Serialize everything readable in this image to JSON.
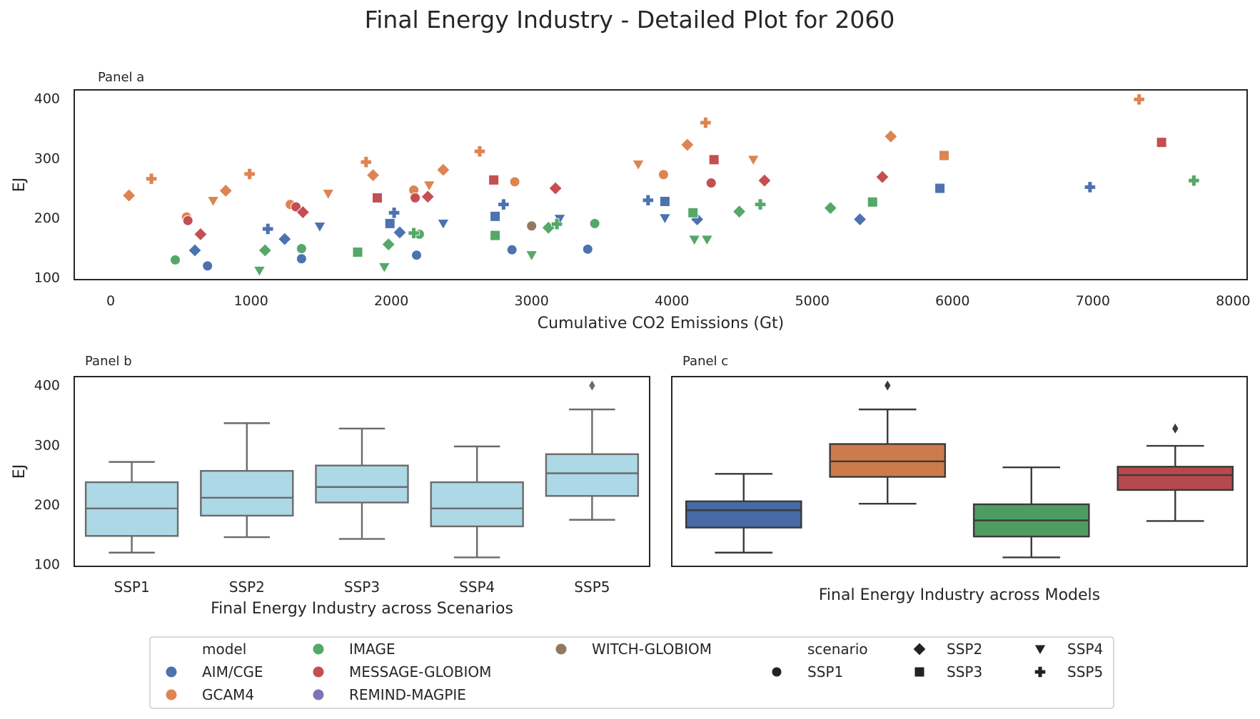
{
  "figure_title": "Final Energy Industry - Detailed Plot for 2060",
  "colors": {
    "AIM/CGE": "#4c72b0",
    "GCAM4": "#dd8452",
    "IMAGE": "#55a868",
    "MESSAGE-GLOBIOM": "#c44e52",
    "REMIND-MAGPIE": "#8172b3",
    "WITCH-GLOBIOM": "#937860",
    "box_scenario": "#add8e6",
    "axis": "#262626"
  },
  "chart_data": [
    {
      "type": "scatter",
      "panel_label": "Panel a",
      "xlabel": "Cumulative CO2 Emissions (Gt)",
      "ylabel": "EJ",
      "xlim": [
        -260,
        8100
      ],
      "ylim": [
        96,
        414
      ],
      "xticks": [
        0,
        1000,
        2000,
        3000,
        4000,
        5000,
        6000,
        7000,
        8000
      ],
      "yticks": [
        100,
        200,
        300,
        400
      ],
      "grid": false,
      "points": [
        {
          "x": 460,
          "y": 129,
          "model": "IMAGE",
          "scenario": "SSP1"
        },
        {
          "x": 690,
          "y": 119,
          "model": "AIM/CGE",
          "scenario": "SSP1"
        },
        {
          "x": 1360,
          "y": 148,
          "model": "IMAGE",
          "scenario": "SSP1"
        },
        {
          "x": 1360,
          "y": 131,
          "model": "AIM/CGE",
          "scenario": "SSP1"
        },
        {
          "x": 540,
          "y": 201,
          "model": "GCAM4",
          "scenario": "SSP1"
        },
        {
          "x": 550,
          "y": 195,
          "model": "MESSAGE-GLOBIOM",
          "scenario": "SSP1"
        },
        {
          "x": 1280,
          "y": 222,
          "model": "GCAM4",
          "scenario": "SSP1"
        },
        {
          "x": 1320,
          "y": 218,
          "model": "MESSAGE-GLOBIOM",
          "scenario": "SSP1"
        },
        {
          "x": 2160,
          "y": 246,
          "model": "GCAM4",
          "scenario": "SSP1"
        },
        {
          "x": 2170,
          "y": 233,
          "model": "MESSAGE-GLOBIOM",
          "scenario": "SSP1"
        },
        {
          "x": 2180,
          "y": 137,
          "model": "AIM/CGE",
          "scenario": "SSP1"
        },
        {
          "x": 2200,
          "y": 172,
          "model": "IMAGE",
          "scenario": "SSP1"
        },
        {
          "x": 2860,
          "y": 146,
          "model": "AIM/CGE",
          "scenario": "SSP1"
        },
        {
          "x": 2880,
          "y": 260,
          "model": "GCAM4",
          "scenario": "SSP1"
        },
        {
          "x": 3000,
          "y": 185,
          "model": "IMAGE",
          "scenario": "SSP1"
        },
        {
          "x": 3000,
          "y": 186,
          "model": "WITCH-GLOBIOM",
          "scenario": "SSP1"
        },
        {
          "x": 3450,
          "y": 190,
          "model": "IMAGE",
          "scenario": "SSP1"
        },
        {
          "x": 3400,
          "y": 147,
          "model": "AIM/CGE",
          "scenario": "SSP1"
        },
        {
          "x": 3940,
          "y": 272,
          "model": "GCAM4",
          "scenario": "SSP1"
        },
        {
          "x": 4280,
          "y": 258,
          "model": "MESSAGE-GLOBIOM",
          "scenario": "SSP1"
        },
        {
          "x": 130,
          "y": 237,
          "model": "GCAM4",
          "scenario": "SSP2"
        },
        {
          "x": 600,
          "y": 145,
          "model": "AIM/CGE",
          "scenario": "SSP2"
        },
        {
          "x": 640,
          "y": 172,
          "model": "MESSAGE-GLOBIOM",
          "scenario": "SSP2"
        },
        {
          "x": 820,
          "y": 245,
          "model": "GCAM4",
          "scenario": "SSP2"
        },
        {
          "x": 1100,
          "y": 145,
          "model": "IMAGE",
          "scenario": "SSP2"
        },
        {
          "x": 1240,
          "y": 164,
          "model": "AIM/CGE",
          "scenario": "SSP2"
        },
        {
          "x": 1370,
          "y": 209,
          "model": "MESSAGE-GLOBIOM",
          "scenario": "SSP2"
        },
        {
          "x": 1870,
          "y": 271,
          "model": "GCAM4",
          "scenario": "SSP2"
        },
        {
          "x": 1980,
          "y": 155,
          "model": "IMAGE",
          "scenario": "SSP2"
        },
        {
          "x": 2060,
          "y": 175,
          "model": "AIM/CGE",
          "scenario": "SSP2"
        },
        {
          "x": 2260,
          "y": 235,
          "model": "MESSAGE-GLOBIOM",
          "scenario": "SSP2"
        },
        {
          "x": 2370,
          "y": 280,
          "model": "GCAM4",
          "scenario": "SSP2"
        },
        {
          "x": 3120,
          "y": 183,
          "model": "IMAGE",
          "scenario": "SSP2"
        },
        {
          "x": 3170,
          "y": 249,
          "model": "MESSAGE-GLOBIOM",
          "scenario": "SSP2"
        },
        {
          "x": 4110,
          "y": 322,
          "model": "GCAM4",
          "scenario": "SSP2"
        },
        {
          "x": 4180,
          "y": 197,
          "model": "AIM/CGE",
          "scenario": "SSP2"
        },
        {
          "x": 4480,
          "y": 210,
          "model": "IMAGE",
          "scenario": "SSP2"
        },
        {
          "x": 4660,
          "y": 262,
          "model": "MESSAGE-GLOBIOM",
          "scenario": "SSP2"
        },
        {
          "x": 5130,
          "y": 216,
          "model": "IMAGE",
          "scenario": "SSP2"
        },
        {
          "x": 5340,
          "y": 197,
          "model": "AIM/CGE",
          "scenario": "SSP2"
        },
        {
          "x": 5500,
          "y": 268,
          "model": "MESSAGE-GLOBIOM",
          "scenario": "SSP2"
        },
        {
          "x": 5560,
          "y": 336,
          "model": "GCAM4",
          "scenario": "SSP2"
        },
        {
          "x": 1760,
          "y": 142,
          "model": "IMAGE",
          "scenario": "SSP3"
        },
        {
          "x": 1900,
          "y": 233,
          "model": "MESSAGE-GLOBIOM",
          "scenario": "SSP3"
        },
        {
          "x": 1990,
          "y": 190,
          "model": "AIM/CGE",
          "scenario": "SSP3"
        },
        {
          "x": 2730,
          "y": 263,
          "model": "MESSAGE-GLOBIOM",
          "scenario": "SSP3"
        },
        {
          "x": 2740,
          "y": 202,
          "model": "AIM/CGE",
          "scenario": "SSP3"
        },
        {
          "x": 2740,
          "y": 170,
          "model": "IMAGE",
          "scenario": "SSP3"
        },
        {
          "x": 3950,
          "y": 227,
          "model": "AIM/CGE",
          "scenario": "SSP3"
        },
        {
          "x": 4150,
          "y": 208,
          "model": "IMAGE",
          "scenario": "SSP3"
        },
        {
          "x": 4300,
          "y": 297,
          "model": "MESSAGE-GLOBIOM",
          "scenario": "SSP3"
        },
        {
          "x": 5430,
          "y": 226,
          "model": "IMAGE",
          "scenario": "SSP3"
        },
        {
          "x": 5910,
          "y": 249,
          "model": "AIM/CGE",
          "scenario": "SSP3"
        },
        {
          "x": 5940,
          "y": 304,
          "model": "GCAM4",
          "scenario": "SSP3"
        },
        {
          "x": 7490,
          "y": 326,
          "model": "MESSAGE-GLOBIOM",
          "scenario": "SSP3"
        },
        {
          "x": 1060,
          "y": 111,
          "model": "IMAGE",
          "scenario": "SSP4"
        },
        {
          "x": 730,
          "y": 228,
          "model": "GCAM4",
          "scenario": "SSP4"
        },
        {
          "x": 1490,
          "y": 185,
          "model": "AIM/CGE",
          "scenario": "SSP4"
        },
        {
          "x": 1550,
          "y": 240,
          "model": "GCAM4",
          "scenario": "SSP4"
        },
        {
          "x": 1950,
          "y": 117,
          "model": "IMAGE",
          "scenario": "SSP4"
        },
        {
          "x": 2270,
          "y": 254,
          "model": "GCAM4",
          "scenario": "SSP4"
        },
        {
          "x": 2370,
          "y": 190,
          "model": "AIM/CGE",
          "scenario": "SSP4"
        },
        {
          "x": 3000,
          "y": 137,
          "model": "IMAGE",
          "scenario": "SSP4"
        },
        {
          "x": 3200,
          "y": 198,
          "model": "AIM/CGE",
          "scenario": "SSP4"
        },
        {
          "x": 3760,
          "y": 289,
          "model": "GCAM4",
          "scenario": "SSP4"
        },
        {
          "x": 3950,
          "y": 199,
          "model": "AIM/CGE",
          "scenario": "SSP4"
        },
        {
          "x": 4160,
          "y": 163,
          "model": "IMAGE",
          "scenario": "SSP4"
        },
        {
          "x": 4250,
          "y": 163,
          "model": "IMAGE",
          "scenario": "SSP4"
        },
        {
          "x": 4580,
          "y": 297,
          "model": "GCAM4",
          "scenario": "SSP4"
        },
        {
          "x": 290,
          "y": 265,
          "model": "GCAM4",
          "scenario": "SSP5"
        },
        {
          "x": 990,
          "y": 273,
          "model": "GCAM4",
          "scenario": "SSP5"
        },
        {
          "x": 1120,
          "y": 181,
          "model": "AIM/CGE",
          "scenario": "SSP5"
        },
        {
          "x": 1820,
          "y": 293,
          "model": "GCAM4",
          "scenario": "SSP5"
        },
        {
          "x": 2020,
          "y": 208,
          "model": "AIM/CGE",
          "scenario": "SSP5"
        },
        {
          "x": 2160,
          "y": 174,
          "model": "IMAGE",
          "scenario": "SSP5"
        },
        {
          "x": 2630,
          "y": 311,
          "model": "GCAM4",
          "scenario": "SSP5"
        },
        {
          "x": 2800,
          "y": 222,
          "model": "AIM/CGE",
          "scenario": "SSP5"
        },
        {
          "x": 3180,
          "y": 189,
          "model": "IMAGE",
          "scenario": "SSP5"
        },
        {
          "x": 3830,
          "y": 229,
          "model": "AIM/CGE",
          "scenario": "SSP5"
        },
        {
          "x": 4240,
          "y": 359,
          "model": "GCAM4",
          "scenario": "SSP5"
        },
        {
          "x": 4630,
          "y": 222,
          "model": "IMAGE",
          "scenario": "SSP5"
        },
        {
          "x": 6980,
          "y": 251,
          "model": "AIM/CGE",
          "scenario": "SSP5"
        },
        {
          "x": 7330,
          "y": 398,
          "model": "GCAM4",
          "scenario": "SSP5"
        },
        {
          "x": 7720,
          "y": 262,
          "model": "IMAGE",
          "scenario": "SSP5"
        }
      ]
    },
    {
      "type": "box",
      "panel_label": "Panel b",
      "xlabel": "Final Energy Industry across Scenarios",
      "ylabel": "EJ",
      "ylim": [
        96,
        414
      ],
      "yticks": [
        100,
        200,
        300,
        400
      ],
      "categories": [
        "SSP1",
        "SSP2",
        "SSP3",
        "SSP4",
        "SSP5"
      ],
      "boxes": [
        {
          "whisker_low": 119,
          "q1": 147,
          "median": 193,
          "q3": 237,
          "whisker_high": 271,
          "outliers": []
        },
        {
          "whisker_low": 145,
          "q1": 181,
          "median": 211,
          "q3": 256,
          "whisker_high": 336,
          "outliers": []
        },
        {
          "whisker_low": 142,
          "q1": 203,
          "median": 229,
          "q3": 265,
          "whisker_high": 327,
          "outliers": []
        },
        {
          "whisker_low": 111,
          "q1": 163,
          "median": 193,
          "q3": 237,
          "whisker_high": 297,
          "outliers": []
        },
        {
          "whisker_low": 174,
          "q1": 214,
          "median": 252,
          "q3": 284,
          "whisker_high": 359,
          "outliers": [
            399
          ]
        }
      ]
    },
    {
      "type": "box",
      "panel_label": "Panel c",
      "xlabel": "Final Energy Industry across Models",
      "ylim": [
        96,
        414
      ],
      "categories": [
        "AIM/CGE",
        "GCAM4",
        "IMAGE",
        "MESSAGE-GLOBIOM"
      ],
      "boxes": [
        {
          "whisker_low": 119,
          "q1": 161,
          "median": 190,
          "q3": 205,
          "whisker_high": 251,
          "outliers": []
        },
        {
          "whisker_low": 201,
          "q1": 246,
          "median": 272,
          "q3": 301,
          "whisker_high": 359,
          "outliers": [
            399
          ]
        },
        {
          "whisker_low": 111,
          "q1": 146,
          "median": 173,
          "q3": 200,
          "whisker_high": 262,
          "outliers": []
        },
        {
          "whisker_low": 172,
          "q1": 224,
          "median": 249,
          "q3": 263,
          "whisker_high": 298,
          "outliers": [
            327
          ]
        }
      ]
    }
  ],
  "legend": {
    "model_title": "model",
    "models": [
      "AIM/CGE",
      "GCAM4",
      "IMAGE",
      "MESSAGE-GLOBIOM",
      "REMIND-MAGPIE",
      "WITCH-GLOBIOM"
    ],
    "scenario_title": "scenario",
    "scenarios": [
      {
        "label": "SSP1",
        "marker": "circle"
      },
      {
        "label": "SSP2",
        "marker": "diamond"
      },
      {
        "label": "SSP3",
        "marker": "square"
      },
      {
        "label": "SSP4",
        "marker": "triangle-down"
      },
      {
        "label": "SSP5",
        "marker": "plus"
      }
    ]
  }
}
